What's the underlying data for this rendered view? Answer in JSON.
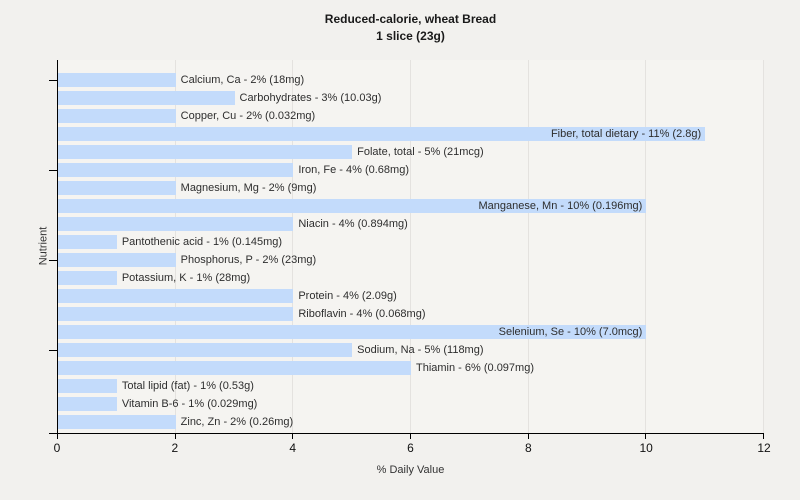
{
  "header": {
    "title": "Reduced-calorie, wheat Bread",
    "subtitle": "1 slice (23g)"
  },
  "chart_data": {
    "type": "bar",
    "orientation": "horizontal",
    "title": "Reduced-calorie, wheat Bread",
    "subtitle": "1 slice (23g)",
    "xlabel": "% Daily Value",
    "ylabel": "Nutrient",
    "xlim": [
      0,
      12
    ],
    "xticks": [
      0,
      2,
      4,
      6,
      8,
      10,
      12
    ],
    "grid": "vertical",
    "legend": "none",
    "bar_color": "#c3dbfb",
    "inside_label_threshold": 10,
    "ytick_row_indices": [
      0,
      5,
      10,
      15
    ],
    "bars": [
      {
        "nutrient": "Calcium, Ca",
        "percent": 2,
        "amount": "18mg",
        "label": "Calcium, Ca - 2% (18mg)"
      },
      {
        "nutrient": "Carbohydrates",
        "percent": 3,
        "amount": "10.03g",
        "label": "Carbohydrates - 3% (10.03g)"
      },
      {
        "nutrient": "Copper, Cu",
        "percent": 2,
        "amount": "0.032mg",
        "label": "Copper, Cu - 2% (0.032mg)"
      },
      {
        "nutrient": "Fiber, total dietary",
        "percent": 11,
        "amount": "2.8g",
        "label": "Fiber, total dietary - 11% (2.8g)"
      },
      {
        "nutrient": "Folate, total",
        "percent": 5,
        "amount": "21mcg",
        "label": "Folate, total - 5% (21mcg)"
      },
      {
        "nutrient": "Iron, Fe",
        "percent": 4,
        "amount": "0.68mg",
        "label": "Iron, Fe - 4% (0.68mg)"
      },
      {
        "nutrient": "Magnesium, Mg",
        "percent": 2,
        "amount": "9mg",
        "label": "Magnesium, Mg - 2% (9mg)"
      },
      {
        "nutrient": "Manganese, Mn",
        "percent": 10,
        "amount": "0.196mg",
        "label": "Manganese, Mn - 10% (0.196mg)"
      },
      {
        "nutrient": "Niacin",
        "percent": 4,
        "amount": "0.894mg",
        "label": "Niacin - 4% (0.894mg)"
      },
      {
        "nutrient": "Pantothenic acid",
        "percent": 1,
        "amount": "0.145mg",
        "label": "Pantothenic acid - 1% (0.145mg)"
      },
      {
        "nutrient": "Phosphorus, P",
        "percent": 2,
        "amount": "23mg",
        "label": "Phosphorus, P - 2% (23mg)"
      },
      {
        "nutrient": "Potassium, K",
        "percent": 1,
        "amount": "28mg",
        "label": "Potassium, K - 1% (28mg)"
      },
      {
        "nutrient": "Protein",
        "percent": 4,
        "amount": "2.09g",
        "label": "Protein - 4% (2.09g)"
      },
      {
        "nutrient": "Riboflavin",
        "percent": 4,
        "amount": "0.068mg",
        "label": "Riboflavin - 4% (0.068mg)"
      },
      {
        "nutrient": "Selenium, Se",
        "percent": 10,
        "amount": "7.0mcg",
        "label": "Selenium, Se - 10% (7.0mcg)"
      },
      {
        "nutrient": "Sodium, Na",
        "percent": 5,
        "amount": "118mg",
        "label": "Sodium, Na - 5% (118mg)"
      },
      {
        "nutrient": "Thiamin",
        "percent": 6,
        "amount": "0.097mg",
        "label": "Thiamin - 6% (0.097mg)"
      },
      {
        "nutrient": "Total lipid (fat)",
        "percent": 1,
        "amount": "0.53g",
        "label": "Total lipid (fat) - 1% (0.53g)"
      },
      {
        "nutrient": "Vitamin B-6",
        "percent": 1,
        "amount": "0.029mg",
        "label": "Vitamin B-6 - 1% (0.029mg)"
      },
      {
        "nutrient": "Zinc, Zn",
        "percent": 2,
        "amount": "0.26mg",
        "label": "Zinc, Zn - 2% (0.26mg)"
      }
    ]
  }
}
